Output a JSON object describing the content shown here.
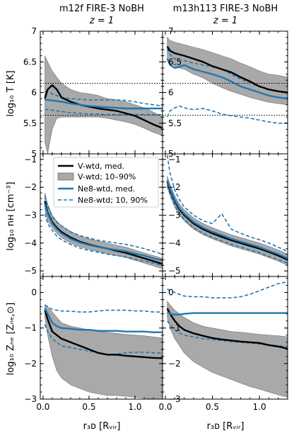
{
  "figure": {
    "columns": [
      {
        "title": "m12f FIRE-3 NoBH",
        "redshift": "z = 1"
      },
      {
        "title": "m13h113 FIRE-3 NoBH",
        "redshift": "z = 1"
      }
    ],
    "row_ylabels": [
      "log₁₀ T [K]",
      "log₁₀ nʜ [cm⁻³]",
      "log₁₀ Zₙₑ [Zₙₑ,⊙]"
    ],
    "xlabel": "r₃ᴅ [Rᵥᵢᵣ]",
    "legend": [
      {
        "label": "V-wtd, med.",
        "style": "black-solid"
      },
      {
        "label": "V-wtd; 10–90%",
        "style": "grey-band"
      },
      {
        "label": "Ne8-wtd, med.",
        "style": "blue-solid"
      },
      {
        "label": "Ne8-wtd; 10, 90%",
        "style": "blue-dashed"
      }
    ],
    "colors": {
      "vwtd_median": "#000000",
      "vwtd_band": "#a9a9a9",
      "ne8": "#1f77b4"
    }
  },
  "chart_data": [
    {
      "type": "line",
      "panel": "m12f T",
      "xlim": [
        -0.03,
        1.3
      ],
      "ylim": [
        5.0,
        7.0
      ],
      "yticks": [
        5.0,
        5.5,
        6.0,
        6.5,
        7.0
      ],
      "xticks": [
        0.0,
        0.5,
        1.0
      ],
      "hlines": [
        6.15,
        5.63
      ],
      "x": [
        0.02,
        0.05,
        0.1,
        0.15,
        0.2,
        0.3,
        0.4,
        0.5,
        0.6,
        0.7,
        0.8,
        0.9,
        1.0,
        1.1,
        1.2,
        1.3
      ],
      "series": [
        {
          "name": "V-wtd, med.",
          "values": [
            5.9,
            6.05,
            6.12,
            6.05,
            5.92,
            5.85,
            5.8,
            5.77,
            5.74,
            5.72,
            5.7,
            5.66,
            5.62,
            5.55,
            5.48,
            5.42
          ]
        },
        {
          "name": "V-wtd; 10–90% low",
          "values": [
            5.2,
            5.0,
            5.4,
            5.58,
            5.6,
            5.6,
            5.6,
            5.6,
            5.6,
            5.58,
            5.55,
            5.52,
            5.48,
            5.42,
            5.35,
            5.3
          ]
        },
        {
          "name": "V-wtd; 10–90% high",
          "values": [
            6.6,
            6.5,
            6.35,
            6.25,
            6.15,
            6.05,
            6.0,
            5.98,
            5.95,
            5.9,
            5.88,
            5.85,
            5.8,
            5.75,
            5.68,
            5.6
          ]
        },
        {
          "name": "Ne8-wtd, med.",
          "values": [
            5.88,
            5.88,
            5.87,
            5.86,
            5.85,
            5.82,
            5.8,
            5.78,
            5.77,
            5.76,
            5.75,
            5.74,
            5.74,
            5.74,
            5.74,
            5.74
          ]
        },
        {
          "name": "Ne8-wtd; 10, 90% low",
          "values": [
            5.72,
            5.72,
            5.71,
            5.7,
            5.69,
            5.67,
            5.66,
            5.65,
            5.65,
            5.64,
            5.64,
            5.64,
            5.64,
            5.64,
            5.64,
            5.64
          ]
        },
        {
          "name": "Ne8-wtd; 10, 90% high",
          "values": [
            6.02,
            6.02,
            5.98,
            5.95,
            5.92,
            5.9,
            5.89,
            5.88,
            5.88,
            5.88,
            5.88,
            5.87,
            5.85,
            5.82,
            5.8,
            5.78
          ]
        }
      ]
    },
    {
      "type": "line",
      "panel": "m13h113 T",
      "xlim": [
        -0.03,
        1.3
      ],
      "ylim": [
        5.0,
        7.0
      ],
      "yticks": [
        5.0,
        5.5,
        6.0,
        6.5,
        7.0
      ],
      "xticks": [
        0.0,
        0.5,
        1.0
      ],
      "hlines": [
        6.15,
        5.63
      ],
      "x": [
        0.02,
        0.05,
        0.1,
        0.15,
        0.2,
        0.3,
        0.4,
        0.5,
        0.6,
        0.7,
        0.8,
        0.9,
        1.0,
        1.1,
        1.2,
        1.3
      ],
      "series": [
        {
          "name": "V-wtd, med.",
          "values": [
            6.75,
            6.68,
            6.64,
            6.62,
            6.6,
            6.55,
            6.5,
            6.43,
            6.38,
            6.33,
            6.25,
            6.18,
            6.1,
            6.05,
            6.02,
            6.0
          ]
        },
        {
          "name": "V-wtd; 10–90% low",
          "values": [
            6.55,
            6.48,
            6.43,
            6.4,
            6.38,
            6.3,
            6.24,
            6.15,
            6.08,
            6.02,
            5.97,
            5.92,
            5.88,
            5.84,
            5.82,
            5.8
          ]
        },
        {
          "name": "V-wtd; 10–90% high",
          "values": [
            6.9,
            6.85,
            6.82,
            6.8,
            6.78,
            6.74,
            6.7,
            6.65,
            6.6,
            6.55,
            6.48,
            6.42,
            6.35,
            6.3,
            6.28,
            6.25
          ]
        },
        {
          "name": "Ne8-wtd, med.",
          "values": [
            6.55,
            6.45,
            6.4,
            6.42,
            6.45,
            6.38,
            6.34,
            6.3,
            6.25,
            6.18,
            6.1,
            6.05,
            6.0,
            5.95,
            5.92,
            5.9
          ]
        },
        {
          "name": "Ne8-wtd; 10, 90% low",
          "values": [
            5.6,
            5.7,
            5.75,
            5.78,
            5.75,
            5.72,
            5.74,
            5.7,
            5.65,
            5.62,
            5.6,
            5.58,
            5.55,
            5.52,
            5.5,
            5.5
          ]
        },
        {
          "name": "Ne8-wtd; 10, 90% high",
          "values": [
            6.72,
            6.62,
            6.55,
            6.52,
            6.52,
            6.48,
            6.45,
            6.42,
            6.38,
            6.3,
            6.22,
            6.15,
            6.1,
            6.05,
            6.02,
            5.98
          ]
        }
      ]
    },
    {
      "type": "line",
      "panel": "m12f nH",
      "xlim": [
        -0.03,
        1.3
      ],
      "ylim": [
        -5.2,
        -0.8
      ],
      "yticks": [
        -1,
        -2,
        -3,
        -4,
        -5
      ],
      "xticks": [
        0.0,
        0.5,
        1.0
      ],
      "x": [
        0.02,
        0.05,
        0.1,
        0.15,
        0.2,
        0.3,
        0.4,
        0.5,
        0.6,
        0.7,
        0.8,
        0.9,
        1.0,
        1.1,
        1.2,
        1.3
      ],
      "series": [
        {
          "name": "V-wtd, med.",
          "values": [
            -2.5,
            -2.9,
            -3.25,
            -3.45,
            -3.6,
            -3.8,
            -3.95,
            -4.05,
            -4.13,
            -4.2,
            -4.28,
            -4.35,
            -4.45,
            -4.55,
            -4.65,
            -4.75
          ]
        },
        {
          "name": "V-wtd; 10–90% low",
          "values": [
            -2.8,
            -3.2,
            -3.45,
            -3.65,
            -3.8,
            -4.0,
            -4.13,
            -4.23,
            -4.3,
            -4.38,
            -4.45,
            -4.52,
            -4.62,
            -4.72,
            -4.82,
            -4.92
          ]
        },
        {
          "name": "V-wtd; 10–90% high",
          "values": [
            -2.2,
            -2.6,
            -3.0,
            -3.22,
            -3.38,
            -3.58,
            -3.75,
            -3.85,
            -3.93,
            -4.0,
            -4.08,
            -4.15,
            -4.25,
            -4.35,
            -4.45,
            -4.55
          ]
        },
        {
          "name": "Ne8-wtd, med.",
          "values": [
            -2.6,
            -2.95,
            -3.3,
            -3.5,
            -3.65,
            -3.85,
            -3.98,
            -4.07,
            -4.14,
            -4.2,
            -4.25,
            -4.3,
            -4.38,
            -4.45,
            -4.55,
            -4.62
          ]
        },
        {
          "name": "Ne8-wtd; 10, 90% low",
          "values": [
            -2.95,
            -3.3,
            -3.55,
            -3.75,
            -3.88,
            -4.05,
            -4.18,
            -4.27,
            -4.33,
            -4.4,
            -4.45,
            -4.5,
            -4.58,
            -4.65,
            -4.72,
            -4.8
          ]
        },
        {
          "name": "Ne8-wtd; 10, 90% high",
          "values": [
            -2.3,
            -2.65,
            -3.05,
            -3.25,
            -3.38,
            -3.6,
            -3.73,
            -3.82,
            -3.9,
            -3.95,
            -4.0,
            -4.05,
            -4.12,
            -4.2,
            -4.3,
            -4.4
          ]
        }
      ]
    },
    {
      "type": "line",
      "panel": "m13h113 nH",
      "xlim": [
        -0.03,
        1.3
      ],
      "ylim": [
        -5.2,
        -0.8
      ],
      "yticks": [
        -1,
        -2,
        -3,
        -4,
        -5
      ],
      "xticks": [
        0.0,
        0.5,
        1.0
      ],
      "x": [
        0.02,
        0.05,
        0.1,
        0.15,
        0.2,
        0.3,
        0.4,
        0.5,
        0.6,
        0.7,
        0.8,
        0.9,
        1.0,
        1.1,
        1.2,
        1.3
      ],
      "series": [
        {
          "name": "V-wtd, med.",
          "values": [
            -1.8,
            -2.1,
            -2.5,
            -2.8,
            -3.0,
            -3.3,
            -3.5,
            -3.65,
            -3.78,
            -3.9,
            -4.0,
            -4.1,
            -4.2,
            -4.32,
            -4.45,
            -4.6
          ]
        },
        {
          "name": "V-wtd; 10–90% low",
          "values": [
            -2.0,
            -2.3,
            -2.72,
            -3.0,
            -3.2,
            -3.5,
            -3.7,
            -3.85,
            -3.98,
            -4.1,
            -4.2,
            -4.3,
            -4.4,
            -4.52,
            -4.65,
            -4.8
          ]
        },
        {
          "name": "V-wtd; 10–90% high",
          "values": [
            -1.6,
            -1.9,
            -2.3,
            -2.6,
            -2.8,
            -3.1,
            -3.3,
            -3.45,
            -3.58,
            -3.7,
            -3.8,
            -3.9,
            -4.0,
            -4.12,
            -4.25,
            -4.4
          ]
        },
        {
          "name": "Ne8-wtd, med.",
          "values": [
            -1.75,
            -2.05,
            -2.45,
            -2.75,
            -2.95,
            -3.25,
            -3.45,
            -3.6,
            -3.72,
            -3.85,
            -3.95,
            -4.05,
            -4.15,
            -4.28,
            -4.4,
            -4.55
          ]
        },
        {
          "name": "Ne8-wtd; 10, 90% low",
          "values": [
            -1.95,
            -2.25,
            -2.65,
            -2.95,
            -3.15,
            -3.45,
            -3.65,
            -3.8,
            -3.92,
            -4.05,
            -4.15,
            -4.25,
            -4.35,
            -4.48,
            -4.6,
            -4.72
          ]
        },
        {
          "name": "Ne8-wtd; 10, 90% high",
          "values": [
            -0.85,
            -1.5,
            -2.1,
            -2.45,
            -2.7,
            -3.0,
            -3.2,
            -3.3,
            -2.95,
            -3.5,
            -3.65,
            -3.78,
            -3.88,
            -4.0,
            -4.15,
            -4.3
          ]
        }
      ]
    },
    {
      "type": "line",
      "panel": "m12f ZNe",
      "xlim": [
        -0.03,
        1.3
      ],
      "ylim": [
        -3.0,
        0.45
      ],
      "yticks": [
        0,
        -1,
        -2,
        -3
      ],
      "xticks": [
        0.0,
        0.5,
        1.0
      ],
      "x": [
        0.02,
        0.05,
        0.1,
        0.15,
        0.2,
        0.3,
        0.4,
        0.5,
        0.6,
        0.7,
        0.8,
        0.9,
        1.0,
        1.1,
        1.2,
        1.3
      ],
      "series": [
        {
          "name": "V-wtd, med.",
          "values": [
            -0.5,
            -0.75,
            -1.1,
            -1.2,
            -1.3,
            -1.4,
            -1.5,
            -1.6,
            -1.7,
            -1.75,
            -1.75,
            -1.78,
            -1.8,
            -1.82,
            -1.84,
            -1.85
          ]
        },
        {
          "name": "V-wtd; 10–90% low",
          "values": [
            -0.7,
            -1.2,
            -1.8,
            -2.2,
            -2.4,
            -2.6,
            -2.7,
            -2.8,
            -2.85,
            -2.9,
            -2.9,
            -2.92,
            -2.95,
            -2.97,
            -3.0,
            -3.0
          ]
        },
        {
          "name": "V-wtd; 10–90% high",
          "values": [
            -0.35,
            -0.4,
            -0.55,
            -0.7,
            -0.85,
            -0.95,
            -1.0,
            -1.05,
            -1.1,
            -1.12,
            -1.15,
            -1.18,
            -1.2,
            -1.22,
            -1.25,
            -1.28
          ]
        },
        {
          "name": "Ne8-wtd, med.",
          "values": [
            -0.45,
            -0.6,
            -0.85,
            -0.95,
            -1.0,
            -1.02,
            -1.05,
            -1.05,
            -1.08,
            -1.08,
            -1.08,
            -1.1,
            -1.1,
            -1.1,
            -1.12,
            -1.12
          ]
        },
        {
          "name": "Ne8-wtd; 10, 90% low",
          "values": [
            -0.9,
            -1.1,
            -1.3,
            -1.4,
            -1.5,
            -1.55,
            -1.6,
            -1.65,
            -1.7,
            -1.75,
            -1.73,
            -1.7,
            -1.68,
            -1.68,
            -1.7,
            -1.7
          ]
        },
        {
          "name": "Ne8-wtd; 10, 90% high",
          "values": [
            -0.35,
            -0.4,
            -0.48,
            -0.5,
            -0.52,
            -0.53,
            -0.55,
            -0.55,
            -0.52,
            -0.5,
            -0.5,
            -0.5,
            -0.52,
            -0.52,
            -0.55,
            -0.55
          ]
        }
      ]
    },
    {
      "type": "line",
      "panel": "m13h113 ZNe",
      "xlim": [
        -0.03,
        1.3
      ],
      "ylim": [
        -3.0,
        0.45
      ],
      "yticks": [
        0,
        -1,
        -2,
        -3
      ],
      "xticks": [
        0.0,
        0.5,
        1.0
      ],
      "x": [
        0.02,
        0.05,
        0.1,
        0.15,
        0.2,
        0.3,
        0.4,
        0.5,
        0.6,
        0.7,
        0.8,
        0.9,
        1.0,
        1.1,
        1.2,
        1.3
      ],
      "series": [
        {
          "name": "V-wtd, med.",
          "values": [
            -0.45,
            -0.6,
            -0.8,
            -0.95,
            -1.05,
            -1.15,
            -1.22,
            -1.28,
            -1.32,
            -1.35,
            -1.38,
            -1.4,
            -1.42,
            -1.48,
            -1.52,
            -1.58
          ]
        },
        {
          "name": "V-wtd; 10–90% low",
          "values": [
            -0.7,
            -1.0,
            -1.3,
            -1.5,
            -1.7,
            -1.95,
            -2.1,
            -2.25,
            -2.35,
            -2.45,
            -2.55,
            -2.65,
            -2.72,
            -2.8,
            -2.88,
            -2.95
          ]
        },
        {
          "name": "V-wtd; 10–90% high",
          "values": [
            -0.25,
            -0.35,
            -0.5,
            -0.6,
            -0.7,
            -0.85,
            -0.95,
            -1.0,
            -1.05,
            -1.1,
            -1.12,
            -1.15,
            -1.18,
            -1.2,
            -1.22,
            -1.25
          ]
        },
        {
          "name": "Ne8-wtd, med.",
          "values": [
            -0.55,
            -0.6,
            -0.62,
            -0.62,
            -0.6,
            -0.58,
            -0.58,
            -0.58,
            -0.58,
            -0.58,
            -0.58,
            -0.58,
            -0.58,
            -0.58,
            -0.58,
            -0.58
          ]
        },
        {
          "name": "Ne8-wtd; 10, 90% low",
          "values": [
            -0.8,
            -0.9,
            -1.05,
            -1.15,
            -1.2,
            -1.25,
            -1.3,
            -1.32,
            -1.35,
            -1.38,
            -1.4,
            -1.42,
            -1.45,
            -1.48,
            -1.5,
            -1.52
          ]
        },
        {
          "name": "Ne8-wtd; 10, 90% high",
          "values": [
            0.1,
            0.05,
            0.0,
            -0.05,
            -0.1,
            -0.12,
            -0.12,
            -0.15,
            -0.15,
            -0.15,
            -0.12,
            -0.05,
            0.05,
            0.15,
            0.25,
            0.3
          ]
        }
      ]
    }
  ]
}
